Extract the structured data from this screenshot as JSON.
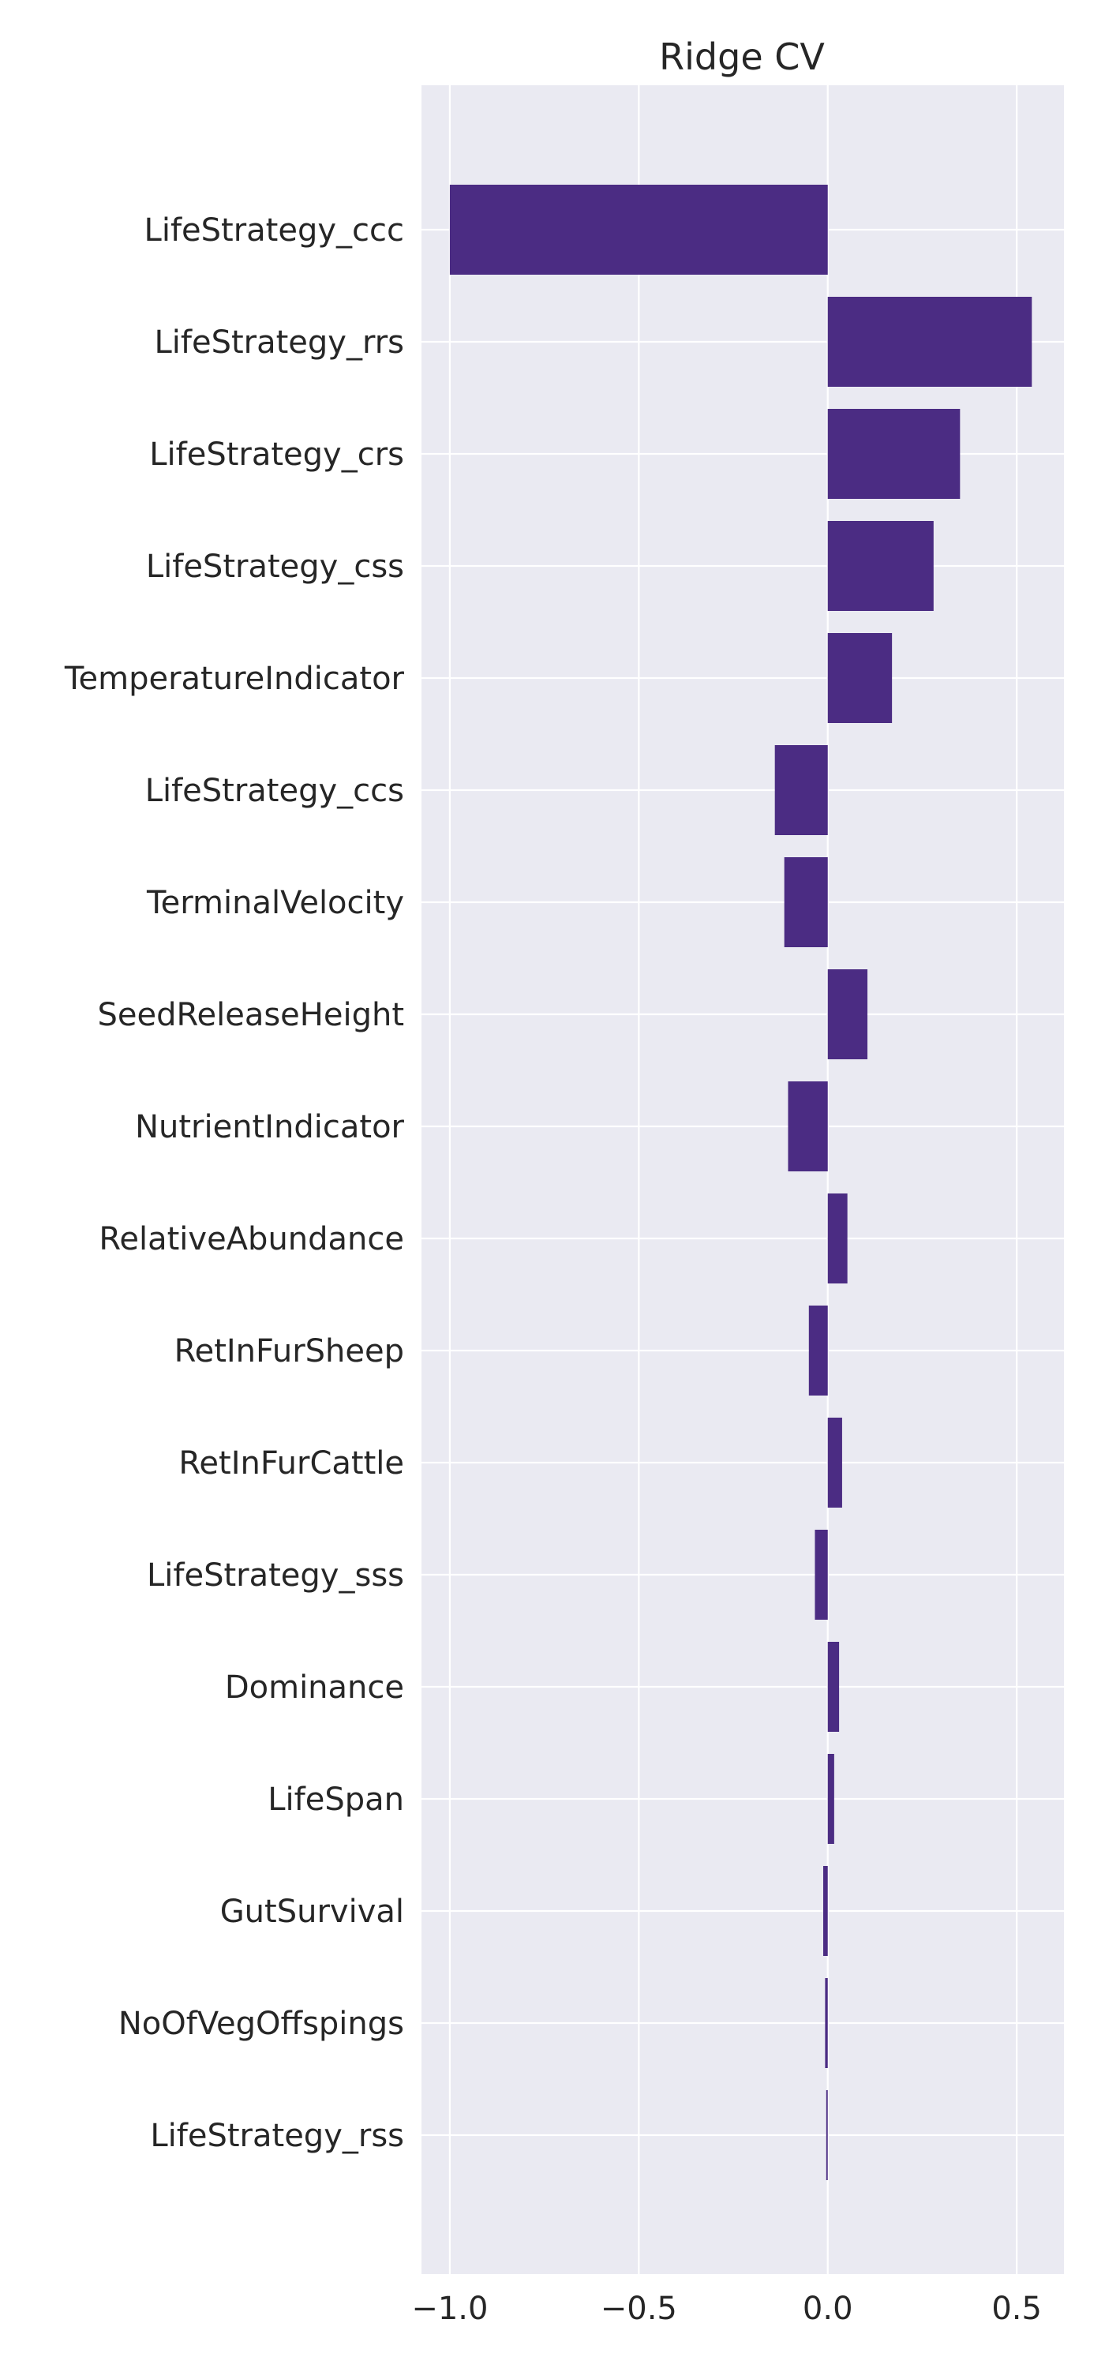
{
  "chart_data": {
    "type": "bar",
    "orientation": "horizontal",
    "title": "Ridge CV",
    "xlabel": "",
    "ylabel": "",
    "categories": [
      "LifeStrategy_ccc",
      "LifeStrategy_rrs",
      "LifeStrategy_crs",
      "LifeStrategy_css",
      "TemperatureIndicator",
      "LifeStrategy_ccs",
      "TerminalVelocity",
      "SeedReleaseHeight",
      "NutrientIndicator",
      "RelativeAbundance",
      "RetInFurSheep",
      "RetInFurCattle",
      "LifeStrategy_sss",
      "Dominance",
      "LifeSpan",
      "GutSurvival",
      "NoOfVegOffspings",
      "LifeStrategy_rss"
    ],
    "values": [
      -1.0,
      0.54,
      0.35,
      0.28,
      0.17,
      -0.14,
      -0.115,
      0.105,
      -0.105,
      0.052,
      -0.05,
      0.038,
      -0.034,
      0.03,
      0.017,
      -0.012,
      -0.007,
      -0.004
    ],
    "xlim": [
      -1.075,
      0.625
    ],
    "xticks": [
      -1.0,
      -0.5,
      0.0,
      0.5
    ],
    "xtick_labels": [
      "−1.0",
      "−0.5",
      "0.0",
      "0.5"
    ],
    "grid": true,
    "legend": "none",
    "colors": {
      "bar": "#4b2c83",
      "plot_background": "#eaeaf2",
      "grid": "#ffffff",
      "text": "#262626"
    }
  }
}
